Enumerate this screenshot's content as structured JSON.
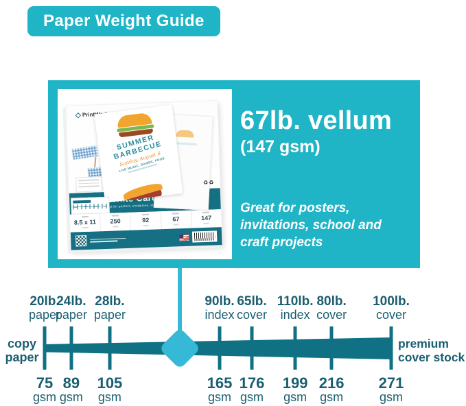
{
  "badge": {
    "label": "Paper Weight Guide"
  },
  "highlight": {
    "title": "67lb. vellum",
    "subtitle": "(147 gsm)",
    "description_lines": [
      "Great for posters,",
      "invitations, school and",
      "craft projects"
    ]
  },
  "package": {
    "brand": "PrintWorks",
    "band_title": "White Cardstock",
    "band_subtitle": "Perfect for posters, invitations, school and craft projects",
    "specs": [
      "8.5 x 11",
      "250",
      "92",
      "67",
      "147"
    ],
    "flyer": {
      "title_lines": [
        "SUMMER",
        "BARBECUE"
      ],
      "script_line": "Sunday, August 6",
      "details_line": "LIVE MUSIC, GAMES, FOOD"
    },
    "icons": [
      "qr-code",
      "us-flag",
      "barcode",
      "recycle"
    ]
  },
  "scale": {
    "left_label_lines": [
      "copy",
      "paper"
    ],
    "right_label_lines": [
      "premium",
      "cover stock"
    ],
    "gsm_unit": "gsm",
    "marker": {
      "pos": 39,
      "gsm": 147
    },
    "points": [
      {
        "lb": "20lb.",
        "type": "paper",
        "gsm": "75",
        "pos": 0
      },
      {
        "lb": "24lb.",
        "type": "paper",
        "gsm": "89",
        "pos": 7.7
      },
      {
        "lb": "28lb.",
        "type": "paper",
        "gsm": "105",
        "pos": 18.8
      },
      {
        "lb": "90lb.",
        "type": "index",
        "gsm": "165",
        "pos": 50.5
      },
      {
        "lb": "65lb.",
        "type": "cover",
        "gsm": "176",
        "pos": 59.8
      },
      {
        "lb": "110lb.",
        "type": "index",
        "gsm": "199",
        "pos": 72.3
      },
      {
        "lb": "80lb.",
        "type": "cover",
        "gsm": "216",
        "pos": 82.8
      },
      {
        "lb": "100lb.",
        "type": "cover",
        "gsm": "271",
        "pos": 100
      }
    ]
  },
  "colors": {
    "teal": "#20b5c6",
    "light_teal": "#35b9d6",
    "bar_dark_teal": "#0f7183",
    "text_dark_teal": "#1b5e70"
  }
}
